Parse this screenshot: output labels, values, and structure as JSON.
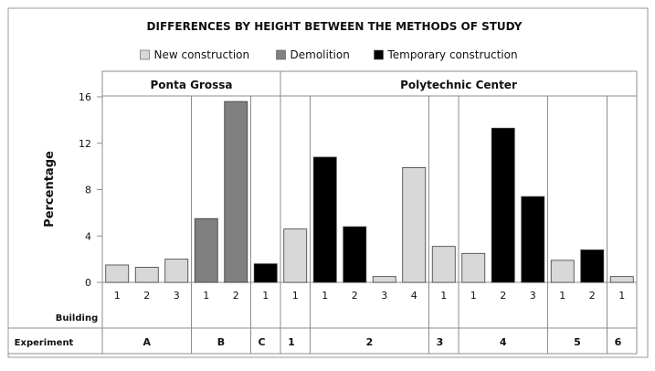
{
  "chart_data": {
    "type": "bar",
    "title": "DIFFERENCES  BY HEIGHT BETWEEN THE METHODS OF STUDY",
    "ylabel": "Percentage",
    "ylim": [
      0,
      16
    ],
    "yticks": [
      0,
      4,
      8,
      12,
      16
    ],
    "grid": false,
    "legend_position": "top",
    "legend": [
      {
        "name": "New construction",
        "color": "#d8d8d8"
      },
      {
        "name": "Demolition",
        "color": "#808080"
      },
      {
        "name": "Temporary construction",
        "color": "#000000"
      }
    ],
    "groups": [
      {
        "label": "Ponta Grossa",
        "experiments": [
          "A",
          "B",
          "C"
        ]
      },
      {
        "label": "Polytechnic Center",
        "experiments": [
          "1",
          "2",
          "3",
          "4",
          "5",
          "6"
        ]
      }
    ],
    "row_labels": {
      "building": "Building",
      "experiment": "Experiment"
    },
    "bars": [
      {
        "experiment": "A",
        "building": "1",
        "series": "New construction",
        "value": 1.5
      },
      {
        "experiment": "A",
        "building": "2",
        "series": "New construction",
        "value": 1.3
      },
      {
        "experiment": "A",
        "building": "3",
        "series": "New construction",
        "value": 2.0
      },
      {
        "experiment": "B",
        "building": "1",
        "series": "Demolition",
        "value": 5.5
      },
      {
        "experiment": "B",
        "building": "2",
        "series": "Demolition",
        "value": 15.6
      },
      {
        "experiment": "C",
        "building": "1",
        "series": "Temporary construction",
        "value": 1.6
      },
      {
        "experiment": "1",
        "building": "1",
        "series": "New construction",
        "value": 4.6
      },
      {
        "experiment": "2",
        "building": "1",
        "series": "Temporary construction",
        "value": 10.8
      },
      {
        "experiment": "2",
        "building": "2",
        "series": "Temporary construction",
        "value": 4.8
      },
      {
        "experiment": "2",
        "building": "3",
        "series": "New construction",
        "value": 0.5
      },
      {
        "experiment": "2",
        "building": "4",
        "series": "New construction",
        "value": 9.9
      },
      {
        "experiment": "3",
        "building": "1",
        "series": "New construction",
        "value": 3.1
      },
      {
        "experiment": "4",
        "building": "1",
        "series": "New construction",
        "value": 2.5
      },
      {
        "experiment": "4",
        "building": "2",
        "series": "Temporary construction",
        "value": 13.3
      },
      {
        "experiment": "4",
        "building": "3",
        "series": "Temporary construction",
        "value": 7.4
      },
      {
        "experiment": "5",
        "building": "1",
        "series": "New construction",
        "value": 1.9
      },
      {
        "experiment": "5",
        "building": "2",
        "series": "Temporary construction",
        "value": 2.8
      },
      {
        "experiment": "6",
        "building": "1",
        "series": "New construction",
        "value": 0.5
      }
    ]
  }
}
